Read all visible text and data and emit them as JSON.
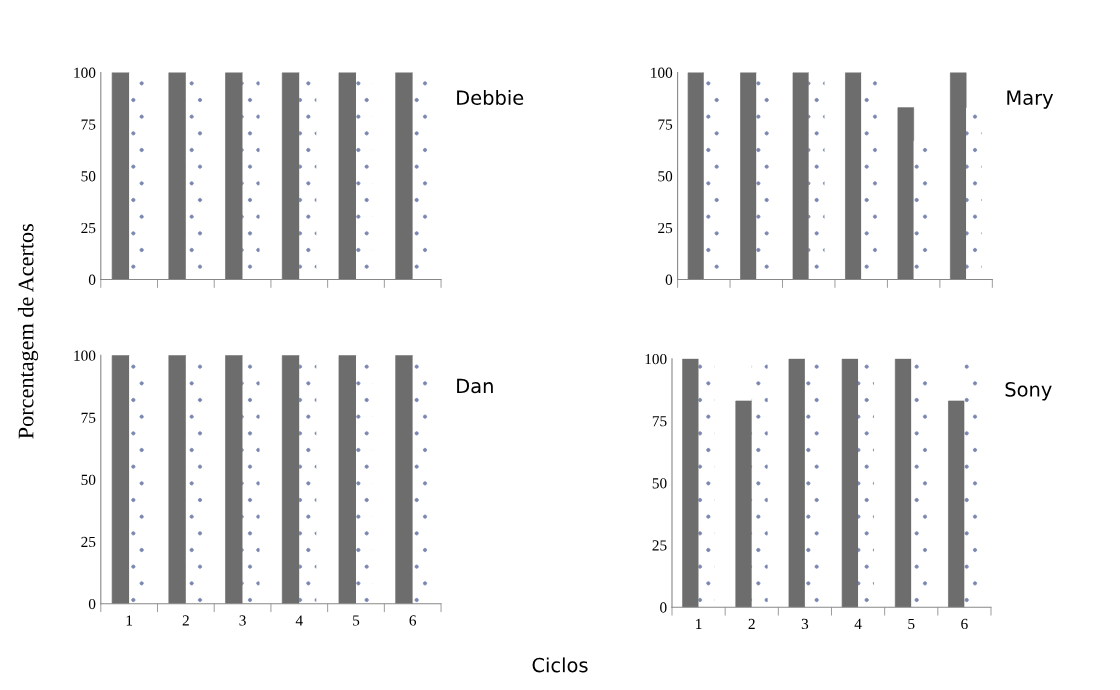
{
  "chart_data": [
    {
      "type": "bar",
      "annotations": [
        "Debbie"
      ],
      "ylabel": "Porcentagem de Acertos",
      "categories": [
        "1",
        "2",
        "3",
        "4",
        "5",
        "6"
      ],
      "ylim": [
        0,
        100
      ],
      "yticks": [
        0,
        25,
        50,
        75,
        100
      ],
      "tick_labels": "y",
      "series": [
        {
          "color": "#6d6d6d",
          "values": [
            100,
            100,
            100,
            100,
            100,
            100
          ]
        },
        {
          "color": "#ffffff",
          "values": [
            100,
            100,
            100,
            100,
            100,
            100
          ]
        }
      ]
    },
    {
      "type": "bar",
      "annotations": [
        "Mary"
      ],
      "categories": [
        "1",
        "2",
        "3",
        "4",
        "5",
        "6"
      ],
      "ylim": [
        0,
        100
      ],
      "yticks": [
        0,
        25,
        50,
        75,
        100
      ],
      "tick_labels": "y",
      "series": [
        {
          "color": "#6d6d6d",
          "values": [
            100,
            100,
            100,
            100,
            83,
            100
          ]
        },
        {
          "color": "#ffffff",
          "values": [
            100,
            100,
            100,
            100,
            67,
            83
          ]
        }
      ]
    },
    {
      "type": "bar",
      "annotations": [
        "Dan"
      ],
      "categories": [
        "1",
        "2",
        "3",
        "4",
        "5",
        "6"
      ],
      "ylim": [
        0,
        100
      ],
      "yticks": [
        0,
        25,
        50,
        75,
        100
      ],
      "series": [
        {
          "color": "#6d6d6d",
          "values": [
            100,
            100,
            100,
            100,
            100,
            100
          ]
        },
        {
          "color": "#ffffff",
          "values": [
            100,
            100,
            100,
            100,
            100,
            100
          ]
        }
      ]
    },
    {
      "type": "bar",
      "annotations": [
        "Sony"
      ],
      "xlabel": "Ciclos",
      "categories": [
        "1",
        "2",
        "3",
        "4",
        "5",
        "6"
      ],
      "ylim": [
        0,
        100
      ],
      "yticks": [
        0,
        25,
        50,
        75,
        100
      ],
      "series": [
        {
          "color": "#6d6d6d",
          "values": [
            100,
            83,
            100,
            100,
            100,
            83
          ]
        },
        {
          "color": "#ffffff",
          "values": [
            100,
            100,
            100,
            100,
            100,
            100
          ]
        }
      ]
    }
  ]
}
